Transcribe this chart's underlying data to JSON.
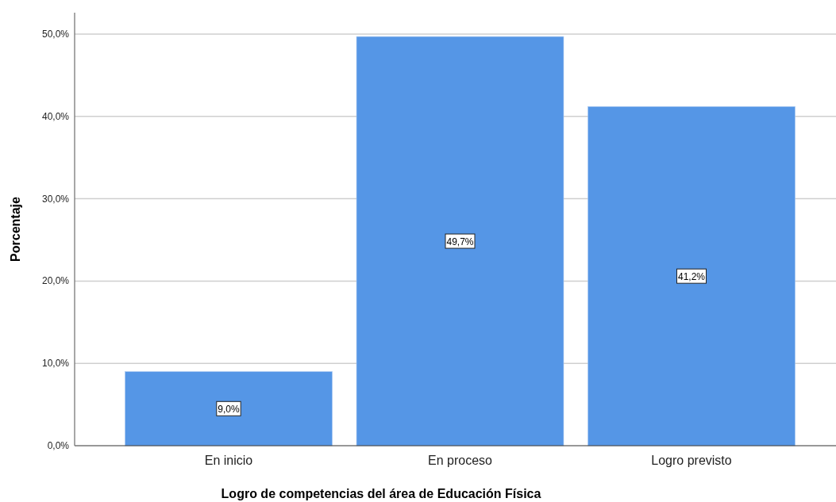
{
  "chart_data": {
    "type": "bar",
    "xlabel": "Logro de competencias del área de Educación Física",
    "ylabel": "Porcentaje",
    "categories": [
      "En inicio",
      "En proceso",
      "Logro previsto"
    ],
    "values": [
      9.0,
      49.7,
      41.2
    ],
    "color": "#5596e6",
    "value_labels": [
      "9,0%",
      "49,7%",
      "41,2%"
    ],
    "ylim": [
      0,
      52.6
    ],
    "yticks": [
      {
        "value": 0,
        "label": "0,0%"
      },
      {
        "value": 10,
        "label": "10,0%"
      },
      {
        "value": 20,
        "label": "20,0%"
      },
      {
        "value": 30,
        "label": "30,0%"
      },
      {
        "value": 40,
        "label": "40,0%"
      },
      {
        "value": 50,
        "label": "50,0%"
      }
    ],
    "grid": "y"
  }
}
